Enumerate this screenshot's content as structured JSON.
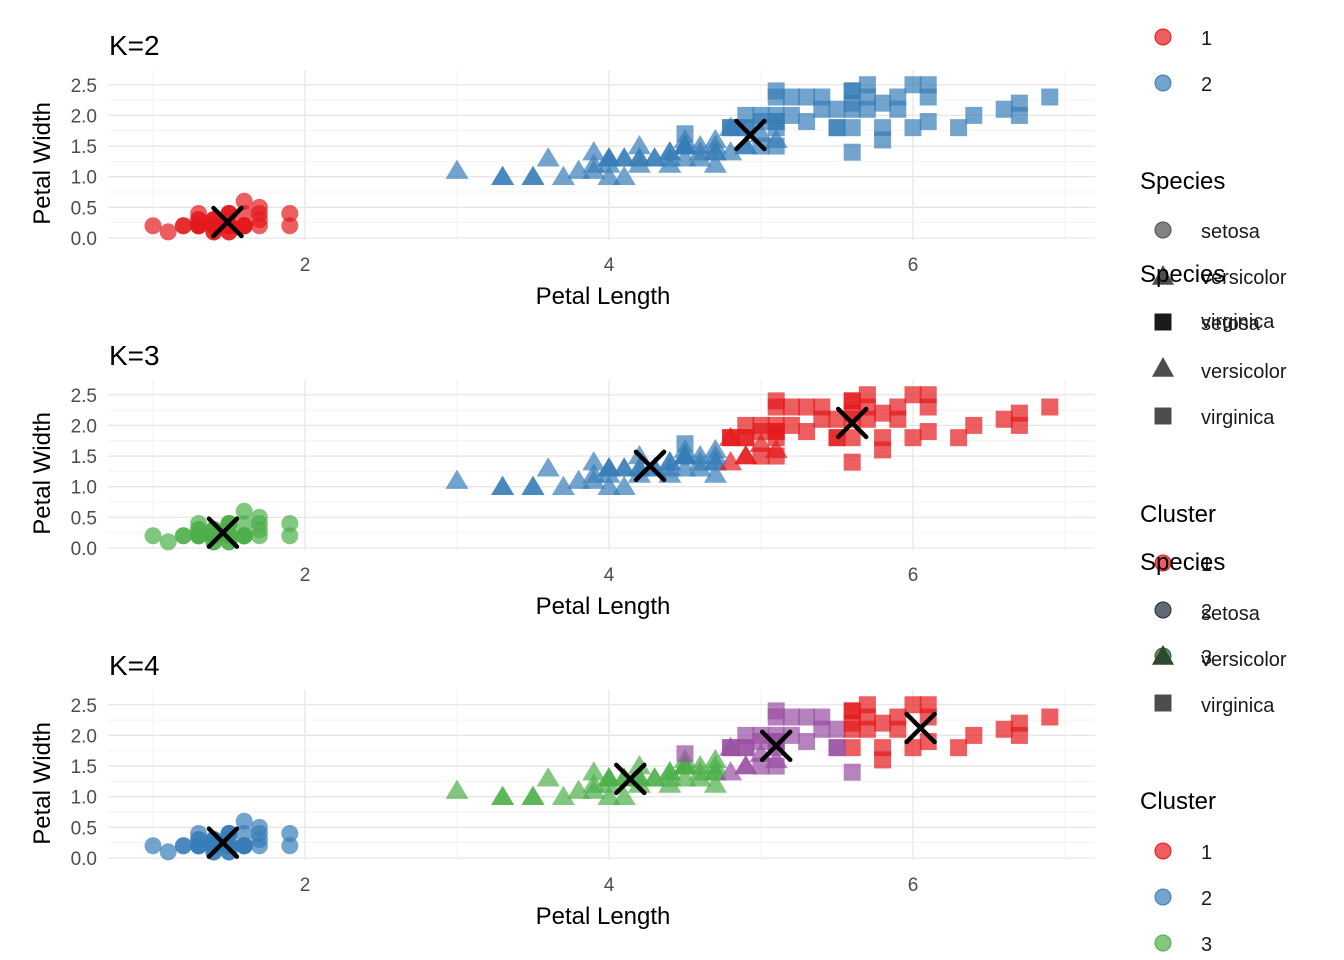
{
  "chart_data": {
    "type": "scatter",
    "xlabel": "Petal Length",
    "ylabel": "Petal Width",
    "xlim": [
      0.75,
      7.1
    ],
    "ylim": [
      0,
      2.6
    ],
    "x_ticks": [
      2,
      4,
      6
    ],
    "y_ticks": [
      "0.0",
      "0.5",
      "1.0",
      "1.5",
      "2.0",
      "2.5"
    ],
    "grid": true,
    "shape_by": "Species",
    "color_by": "Cluster",
    "cluster_colors": [
      "#E41A1C",
      "#377EB8",
      "#4DAF4A",
      "#984EA3"
    ],
    "centroid_marker": "X",
    "species": [
      {
        "name": "setosa",
        "points": [
          [
            1.4,
            0.2
          ],
          [
            1.4,
            0.2
          ],
          [
            1.3,
            0.2
          ],
          [
            1.5,
            0.2
          ],
          [
            1.4,
            0.2
          ],
          [
            1.7,
            0.4
          ],
          [
            1.4,
            0.3
          ],
          [
            1.5,
            0.2
          ],
          [
            1.4,
            0.2
          ],
          [
            1.5,
            0.1
          ],
          [
            1.5,
            0.2
          ],
          [
            1.6,
            0.2
          ],
          [
            1.4,
            0.1
          ],
          [
            1.1,
            0.1
          ],
          [
            1.2,
            0.2
          ],
          [
            1.5,
            0.4
          ],
          [
            1.3,
            0.4
          ],
          [
            1.4,
            0.3
          ],
          [
            1.7,
            0.3
          ],
          [
            1.5,
            0.3
          ],
          [
            1.7,
            0.2
          ],
          [
            1.5,
            0.4
          ],
          [
            1.0,
            0.2
          ],
          [
            1.7,
            0.5
          ],
          [
            1.9,
            0.2
          ],
          [
            1.6,
            0.2
          ],
          [
            1.6,
            0.4
          ],
          [
            1.5,
            0.2
          ],
          [
            1.4,
            0.2
          ],
          [
            1.6,
            0.2
          ],
          [
            1.6,
            0.2
          ],
          [
            1.5,
            0.4
          ],
          [
            1.5,
            0.1
          ],
          [
            1.4,
            0.2
          ],
          [
            1.5,
            0.2
          ],
          [
            1.2,
            0.2
          ],
          [
            1.3,
            0.2
          ],
          [
            1.4,
            0.1
          ],
          [
            1.3,
            0.2
          ],
          [
            1.5,
            0.2
          ],
          [
            1.3,
            0.3
          ],
          [
            1.3,
            0.3
          ],
          [
            1.3,
            0.2
          ],
          [
            1.6,
            0.6
          ],
          [
            1.9,
            0.4
          ],
          [
            1.4,
            0.3
          ],
          [
            1.6,
            0.2
          ],
          [
            1.4,
            0.2
          ],
          [
            1.5,
            0.2
          ],
          [
            1.4,
            0.2
          ]
        ]
      },
      {
        "name": "versicolor",
        "points": [
          [
            4.7,
            1.4
          ],
          [
            4.5,
            1.5
          ],
          [
            4.9,
            1.5
          ],
          [
            4.0,
            1.3
          ],
          [
            4.6,
            1.5
          ],
          [
            4.5,
            1.3
          ],
          [
            4.7,
            1.6
          ],
          [
            3.3,
            1.0
          ],
          [
            4.6,
            1.3
          ],
          [
            3.9,
            1.4
          ],
          [
            3.5,
            1.0
          ],
          [
            4.2,
            1.5
          ],
          [
            4.0,
            1.0
          ],
          [
            4.7,
            1.4
          ],
          [
            3.6,
            1.3
          ],
          [
            4.4,
            1.4
          ],
          [
            4.5,
            1.5
          ],
          [
            4.1,
            1.0
          ],
          [
            4.5,
            1.5
          ],
          [
            3.9,
            1.1
          ],
          [
            4.8,
            1.8
          ],
          [
            4.0,
            1.3
          ],
          [
            4.9,
            1.5
          ],
          [
            4.7,
            1.2
          ],
          [
            4.3,
            1.3
          ],
          [
            4.4,
            1.4
          ],
          [
            4.8,
            1.4
          ],
          [
            5.0,
            1.7
          ],
          [
            4.5,
            1.5
          ],
          [
            3.5,
            1.0
          ],
          [
            3.8,
            1.1
          ],
          [
            3.7,
            1.0
          ],
          [
            3.9,
            1.2
          ],
          [
            5.1,
            1.6
          ],
          [
            4.5,
            1.5
          ],
          [
            4.5,
            1.6
          ],
          [
            4.7,
            1.5
          ],
          [
            4.4,
            1.3
          ],
          [
            4.1,
            1.3
          ],
          [
            4.0,
            1.3
          ],
          [
            4.4,
            1.2
          ],
          [
            4.6,
            1.4
          ],
          [
            4.0,
            1.2
          ],
          [
            3.3,
            1.0
          ],
          [
            4.2,
            1.3
          ],
          [
            4.2,
            1.2
          ],
          [
            4.2,
            1.3
          ],
          [
            4.3,
            1.3
          ],
          [
            3.0,
            1.1
          ],
          [
            4.1,
            1.3
          ]
        ]
      },
      {
        "name": "virginica",
        "points": [
          [
            6.0,
            2.5
          ],
          [
            5.1,
            1.9
          ],
          [
            5.9,
            2.1
          ],
          [
            5.6,
            1.8
          ],
          [
            5.8,
            2.2
          ],
          [
            6.6,
            2.1
          ],
          [
            4.5,
            1.7
          ],
          [
            6.3,
            1.8
          ],
          [
            5.8,
            1.8
          ],
          [
            6.1,
            2.5
          ],
          [
            5.1,
            2.0
          ],
          [
            5.3,
            1.9
          ],
          [
            5.5,
            2.1
          ],
          [
            5.0,
            2.0
          ],
          [
            5.1,
            2.4
          ],
          [
            5.3,
            2.3
          ],
          [
            5.5,
            1.8
          ],
          [
            6.7,
            2.2
          ],
          [
            6.9,
            2.3
          ],
          [
            5.0,
            1.5
          ],
          [
            5.7,
            2.3
          ],
          [
            4.9,
            2.0
          ],
          [
            6.7,
            2.0
          ],
          [
            4.9,
            1.8
          ],
          [
            5.7,
            2.1
          ],
          [
            6.0,
            1.8
          ],
          [
            4.8,
            1.8
          ],
          [
            4.9,
            1.8
          ],
          [
            5.6,
            2.1
          ],
          [
            5.8,
            1.6
          ],
          [
            6.1,
            1.9
          ],
          [
            6.4,
            2.0
          ],
          [
            5.6,
            2.2
          ],
          [
            5.1,
            1.5
          ],
          [
            5.6,
            1.4
          ],
          [
            6.1,
            2.3
          ],
          [
            5.6,
            2.4
          ],
          [
            5.5,
            1.8
          ],
          [
            4.8,
            1.8
          ],
          [
            5.4,
            2.1
          ],
          [
            5.6,
            2.4
          ],
          [
            5.1,
            2.3
          ],
          [
            5.1,
            1.9
          ],
          [
            5.9,
            2.3
          ],
          [
            5.7,
            2.5
          ],
          [
            5.2,
            2.3
          ],
          [
            5.0,
            1.9
          ],
          [
            5.2,
            2.0
          ],
          [
            5.4,
            2.3
          ],
          [
            5.1,
            1.8
          ]
        ]
      }
    ],
    "panels": [
      {
        "title": "K=2",
        "k": 2,
        "centroids": [
          [
            1.49,
            0.26
          ],
          [
            4.93,
            1.68
          ]
        ],
        "rule": "setosa_pl_lt_2_0_else_1"
      },
      {
        "title": "K=3",
        "k": 3,
        "centroids": [
          [
            1.46,
            0.25
          ],
          [
            4.27,
            1.34
          ],
          [
            5.6,
            2.04
          ]
        ],
        "rule": "3cluster"
      },
      {
        "title": "K=4",
        "k": 4,
        "centroids": [
          [
            1.46,
            0.25
          ],
          [
            4.14,
            1.29
          ],
          [
            5.1,
            1.83
          ],
          [
            6.05,
            2.12
          ]
        ],
        "rule": "4cluster"
      }
    ]
  },
  "legend": {
    "cluster_title": "Cluster",
    "species_title": "Species",
    "panel1_clusters": [
      "1",
      "2"
    ],
    "species": [
      "setosa",
      "versicolor",
      "virginica"
    ],
    "panel3_clusters": [
      "1",
      "2",
      "3"
    ],
    "panel2_clusters_partial": [
      "1",
      "2",
      "3"
    ]
  }
}
